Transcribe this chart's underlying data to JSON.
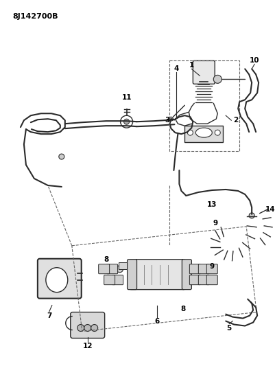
{
  "title": "8J142700B",
  "bg_color": "#ffffff",
  "line_color": "#2a2a2a",
  "dashed_color": "#666666",
  "label_color": "#000000",
  "title_fontsize": 8,
  "label_fontsize": 7.5,
  "fig_width": 4.02,
  "fig_height": 5.33,
  "dpi": 100
}
